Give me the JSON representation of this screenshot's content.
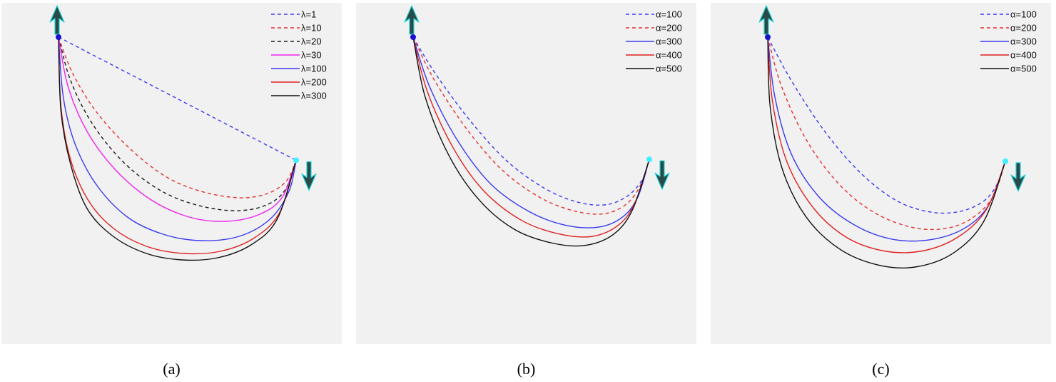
{
  "colors": {
    "panel_bg": "#f1f1f1",
    "arrow": "#2a4a4a",
    "arrow_outline": "#22d8d8",
    "start_point": "#1a10d0",
    "end_point": "#3ff0ff"
  },
  "chart_data": [
    {
      "type": "line",
      "caption": "(a)",
      "legend_position": "top-right",
      "grid": false,
      "series": [
        {
          "name": "λ=1",
          "color": "#3a3af0",
          "dash": true,
          "points": [
            [
              0.0,
              1.0
            ],
            [
              1.0,
              0.425
            ]
          ]
        },
        {
          "name": "λ=10",
          "color": "#e53030",
          "dash": true,
          "points": [
            [
              0.0,
              1.0
            ],
            [
              0.06,
              0.83
            ],
            [
              0.16,
              0.65
            ],
            [
              0.3,
              0.48
            ],
            [
              0.45,
              0.35
            ],
            [
              0.6,
              0.28
            ],
            [
              0.76,
              0.25
            ],
            [
              0.88,
              0.27
            ],
            [
              0.96,
              0.33
            ],
            [
              1.0,
              0.425
            ]
          ]
        },
        {
          "name": "λ=20",
          "color": "#1a1a1a",
          "dash": true,
          "points": [
            [
              0.0,
              1.0
            ],
            [
              0.05,
              0.8
            ],
            [
              0.14,
              0.6
            ],
            [
              0.27,
              0.42
            ],
            [
              0.42,
              0.29
            ],
            [
              0.57,
              0.22
            ],
            [
              0.73,
              0.19
            ],
            [
              0.86,
              0.21
            ],
            [
              0.95,
              0.28
            ],
            [
              1.0,
              0.425
            ]
          ]
        },
        {
          "name": "λ=30",
          "color": "#ee22ee",
          "dash": false,
          "points": [
            [
              0.0,
              1.0
            ],
            [
              0.04,
              0.77
            ],
            [
              0.12,
              0.56
            ],
            [
              0.24,
              0.38
            ],
            [
              0.39,
              0.24
            ],
            [
              0.55,
              0.16
            ],
            [
              0.7,
              0.14
            ],
            [
              0.84,
              0.17
            ],
            [
              0.94,
              0.25
            ],
            [
              1.0,
              0.425
            ]
          ]
        },
        {
          "name": "λ=100",
          "color": "#3a3af0",
          "dash": false,
          "points": [
            [
              0.0,
              1.0
            ],
            [
              0.02,
              0.72
            ],
            [
              0.07,
              0.5
            ],
            [
              0.16,
              0.31
            ],
            [
              0.29,
              0.16
            ],
            [
              0.44,
              0.08
            ],
            [
              0.6,
              0.05
            ],
            [
              0.76,
              0.07
            ],
            [
              0.89,
              0.15
            ],
            [
              0.97,
              0.28
            ],
            [
              1.0,
              0.425
            ]
          ]
        },
        {
          "name": "λ=200",
          "color": "#e02020",
          "dash": false,
          "points": [
            [
              0.0,
              1.0
            ],
            [
              0.01,
              0.68
            ],
            [
              0.05,
              0.43
            ],
            [
              0.13,
              0.23
            ],
            [
              0.24,
              0.1
            ],
            [
              0.38,
              0.02
            ],
            [
              0.53,
              -0.01
            ],
            [
              0.68,
              0.0
            ],
            [
              0.82,
              0.06
            ],
            [
              0.93,
              0.18
            ],
            [
              1.0,
              0.425
            ]
          ]
        },
        {
          "name": "λ=300",
          "color": "#111111",
          "dash": false,
          "points": [
            [
              0.0,
              1.0
            ],
            [
              0.01,
              0.66
            ],
            [
              0.05,
              0.41
            ],
            [
              0.12,
              0.2
            ],
            [
              0.23,
              0.07
            ],
            [
              0.37,
              -0.01
            ],
            [
              0.52,
              -0.04
            ],
            [
              0.67,
              -0.03
            ],
            [
              0.81,
              0.03
            ],
            [
              0.92,
              0.15
            ],
            [
              1.0,
              0.425
            ]
          ]
        }
      ]
    },
    {
      "type": "line",
      "caption": "(b)",
      "legend_position": "top-right",
      "grid": false,
      "series": [
        {
          "name": "α=100",
          "color": "#3a3af0",
          "dash": true,
          "points": [
            [
              0.0,
              1.0
            ],
            [
              0.1,
              0.83
            ],
            [
              0.25,
              0.62
            ],
            [
              0.4,
              0.45
            ],
            [
              0.56,
              0.33
            ],
            [
              0.7,
              0.27
            ],
            [
              0.82,
              0.26
            ],
            [
              0.91,
              0.3
            ],
            [
              0.97,
              0.37
            ],
            [
              1.0,
              0.46
            ]
          ]
        },
        {
          "name": "α=200",
          "color": "#e53030",
          "dash": true,
          "points": [
            [
              0.0,
              1.0
            ],
            [
              0.09,
              0.81
            ],
            [
              0.23,
              0.59
            ],
            [
              0.38,
              0.41
            ],
            [
              0.54,
              0.29
            ],
            [
              0.69,
              0.23
            ],
            [
              0.81,
              0.22
            ],
            [
              0.9,
              0.26
            ],
            [
              0.96,
              0.34
            ],
            [
              1.0,
              0.46
            ]
          ]
        },
        {
          "name": "α=300",
          "color": "#3a3af0",
          "dash": false,
          "points": [
            [
              0.0,
              1.0
            ],
            [
              0.07,
              0.78
            ],
            [
              0.19,
              0.54
            ],
            [
              0.33,
              0.35
            ],
            [
              0.49,
              0.23
            ],
            [
              0.64,
              0.17
            ],
            [
              0.78,
              0.16
            ],
            [
              0.88,
              0.2
            ],
            [
              0.95,
              0.29
            ],
            [
              1.0,
              0.46
            ]
          ]
        },
        {
          "name": "α=400",
          "color": "#e02020",
          "dash": false,
          "points": [
            [
              0.0,
              1.0
            ],
            [
              0.06,
              0.76
            ],
            [
              0.17,
              0.51
            ],
            [
              0.3,
              0.32
            ],
            [
              0.46,
              0.19
            ],
            [
              0.62,
              0.13
            ],
            [
              0.76,
              0.12
            ],
            [
              0.87,
              0.17
            ],
            [
              0.94,
              0.27
            ],
            [
              1.0,
              0.46
            ]
          ]
        },
        {
          "name": "α=500",
          "color": "#111111",
          "dash": false,
          "points": [
            [
              0.0,
              1.0
            ],
            [
              0.05,
              0.74
            ],
            [
              0.15,
              0.48
            ],
            [
              0.28,
              0.28
            ],
            [
              0.43,
              0.15
            ],
            [
              0.59,
              0.09
            ],
            [
              0.73,
              0.08
            ],
            [
              0.85,
              0.13
            ],
            [
              0.93,
              0.24
            ],
            [
              1.0,
              0.46
            ]
          ]
        }
      ]
    },
    {
      "type": "line",
      "caption": "(c)",
      "legend_position": "top-right",
      "grid": false,
      "series": [
        {
          "name": "α=100",
          "color": "#3a3af0",
          "dash": true,
          "points": [
            [
              0.0,
              1.0
            ],
            [
              0.1,
              0.81
            ],
            [
              0.24,
              0.59
            ],
            [
              0.39,
              0.41
            ],
            [
              0.54,
              0.29
            ],
            [
              0.68,
              0.24
            ],
            [
              0.8,
              0.24
            ],
            [
              0.9,
              0.28
            ],
            [
              0.96,
              0.35
            ],
            [
              1.0,
              0.46
            ]
          ]
        },
        {
          "name": "α=200",
          "color": "#e53030",
          "dash": true,
          "points": [
            [
              0.0,
              1.0
            ],
            [
              0.06,
              0.78
            ],
            [
              0.17,
              0.54
            ],
            [
              0.31,
              0.35
            ],
            [
              0.46,
              0.23
            ],
            [
              0.62,
              0.17
            ],
            [
              0.76,
              0.17
            ],
            [
              0.87,
              0.22
            ],
            [
              0.95,
              0.31
            ],
            [
              1.0,
              0.46
            ]
          ]
        },
        {
          "name": "α=300",
          "color": "#3a3af0",
          "dash": false,
          "points": [
            [
              0.0,
              1.0
            ],
            [
              0.03,
              0.74
            ],
            [
              0.1,
              0.49
            ],
            [
              0.22,
              0.3
            ],
            [
              0.37,
              0.18
            ],
            [
              0.53,
              0.12
            ],
            [
              0.69,
              0.12
            ],
            [
              0.83,
              0.17
            ],
            [
              0.93,
              0.27
            ],
            [
              1.0,
              0.46
            ]
          ]
        },
        {
          "name": "α=400",
          "color": "#e02020",
          "dash": false,
          "points": [
            [
              0.0,
              1.0
            ],
            [
              0.02,
              0.72
            ],
            [
              0.08,
              0.46
            ],
            [
              0.19,
              0.26
            ],
            [
              0.33,
              0.13
            ],
            [
              0.49,
              0.07
            ],
            [
              0.65,
              0.07
            ],
            [
              0.8,
              0.13
            ],
            [
              0.92,
              0.25
            ],
            [
              1.0,
              0.46
            ]
          ]
        },
        {
          "name": "α=500",
          "color": "#111111",
          "dash": false,
          "points": [
            [
              0.0,
              1.0
            ],
            [
              0.01,
              0.7
            ],
            [
              0.06,
              0.43
            ],
            [
              0.16,
              0.22
            ],
            [
              0.3,
              0.08
            ],
            [
              0.46,
              0.01
            ],
            [
              0.62,
              0.0
            ],
            [
              0.78,
              0.06
            ],
            [
              0.91,
              0.2
            ],
            [
              1.0,
              0.46
            ]
          ]
        }
      ]
    }
  ]
}
